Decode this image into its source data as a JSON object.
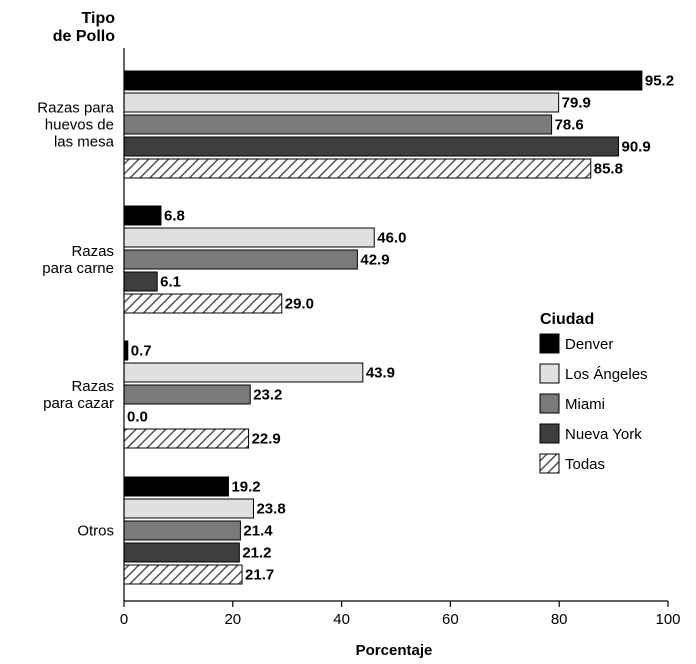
{
  "chart_data": {
    "type": "bar",
    "orientation": "horizontal",
    "y_title_line1": "Tipo",
    "y_title_line2": "de Pollo",
    "xlabel": "Porcentaje",
    "xlim": [
      0,
      100
    ],
    "xticks": [
      0,
      20,
      40,
      60,
      80,
      100
    ],
    "categories": [
      {
        "lines": [
          "Razas para",
          "huevos de",
          "las mesa"
        ]
      },
      {
        "lines": [
          "Razas",
          "para carne"
        ]
      },
      {
        "lines": [
          "Razas",
          "para cazar"
        ]
      },
      {
        "lines": [
          "Otros"
        ]
      }
    ],
    "legend_title": "Ciudad",
    "legend_position": "right",
    "series": [
      {
        "name": "Denver",
        "fill": "#000000",
        "pattern": "solid",
        "values": [
          95.2,
          6.8,
          0.7,
          19.2
        ],
        "labels": [
          "95.2",
          "6.8",
          "0.7",
          "19.2"
        ]
      },
      {
        "name": "Los Ángeles",
        "fill": "#e0e0e0",
        "pattern": "solid",
        "values": [
          79.9,
          46.0,
          43.9,
          23.8
        ],
        "labels": [
          "79.9",
          "46.0",
          "43.9",
          "23.8"
        ]
      },
      {
        "name": "Miami",
        "fill": "#7a7a7a",
        "pattern": "solid",
        "values": [
          78.6,
          42.9,
          23.2,
          21.4
        ],
        "labels": [
          "78.6",
          "42.9",
          "23.2",
          "21.4"
        ]
      },
      {
        "name": "Nueva York",
        "fill": "#3e3e3e",
        "pattern": "solid",
        "values": [
          90.9,
          6.1,
          0.0,
          21.2
        ],
        "labels": [
          "90.9",
          "6.1",
          "0.0",
          "21.2"
        ]
      },
      {
        "name": "Todas",
        "fill": "#ffffff",
        "pattern": "hatch",
        "values": [
          85.8,
          29.0,
          22.9,
          21.7
        ],
        "labels": [
          "85.8",
          "29.0",
          "22.9",
          "21.7"
        ]
      }
    ]
  }
}
